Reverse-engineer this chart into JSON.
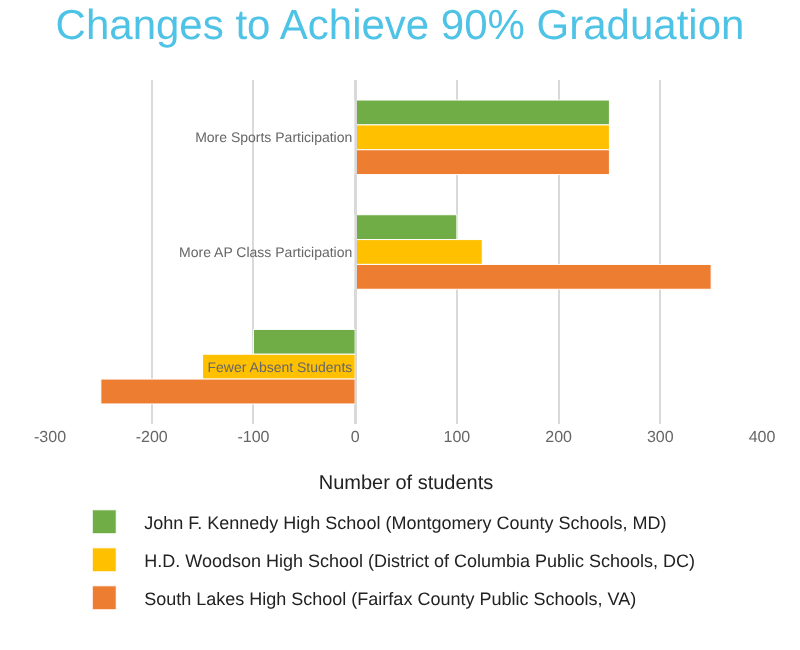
{
  "chart_data": {
    "type": "bar",
    "orientation": "horizontal",
    "title": "Changes to Achieve 90% Graduation",
    "xlabel": "Number of students",
    "categories": [
      "More Sports Participation",
      "More AP Class Participation",
      "Fewer Absent Students"
    ],
    "series": [
      {
        "name": "John F. Kennedy High School (Montgomery County Schools, MD)",
        "color": "#70ad47",
        "values": [
          250,
          100,
          -100
        ]
      },
      {
        "name": "H.D. Woodson High School (District of Columbia Public Schools, DC)",
        "color": "#ffc000",
        "values": [
          250,
          125,
          -150
        ]
      },
      {
        "name": "South Lakes High School (Fairfax County Public Schools, VA)",
        "color": "#ed7d31",
        "values": [
          250,
          350,
          -250
        ]
      }
    ],
    "xlim": [
      -300,
      400
    ],
    "xticks": [
      -300,
      -200,
      -100,
      0,
      100,
      200,
      300,
      400
    ],
    "grid": "x",
    "legend": "bottom"
  }
}
